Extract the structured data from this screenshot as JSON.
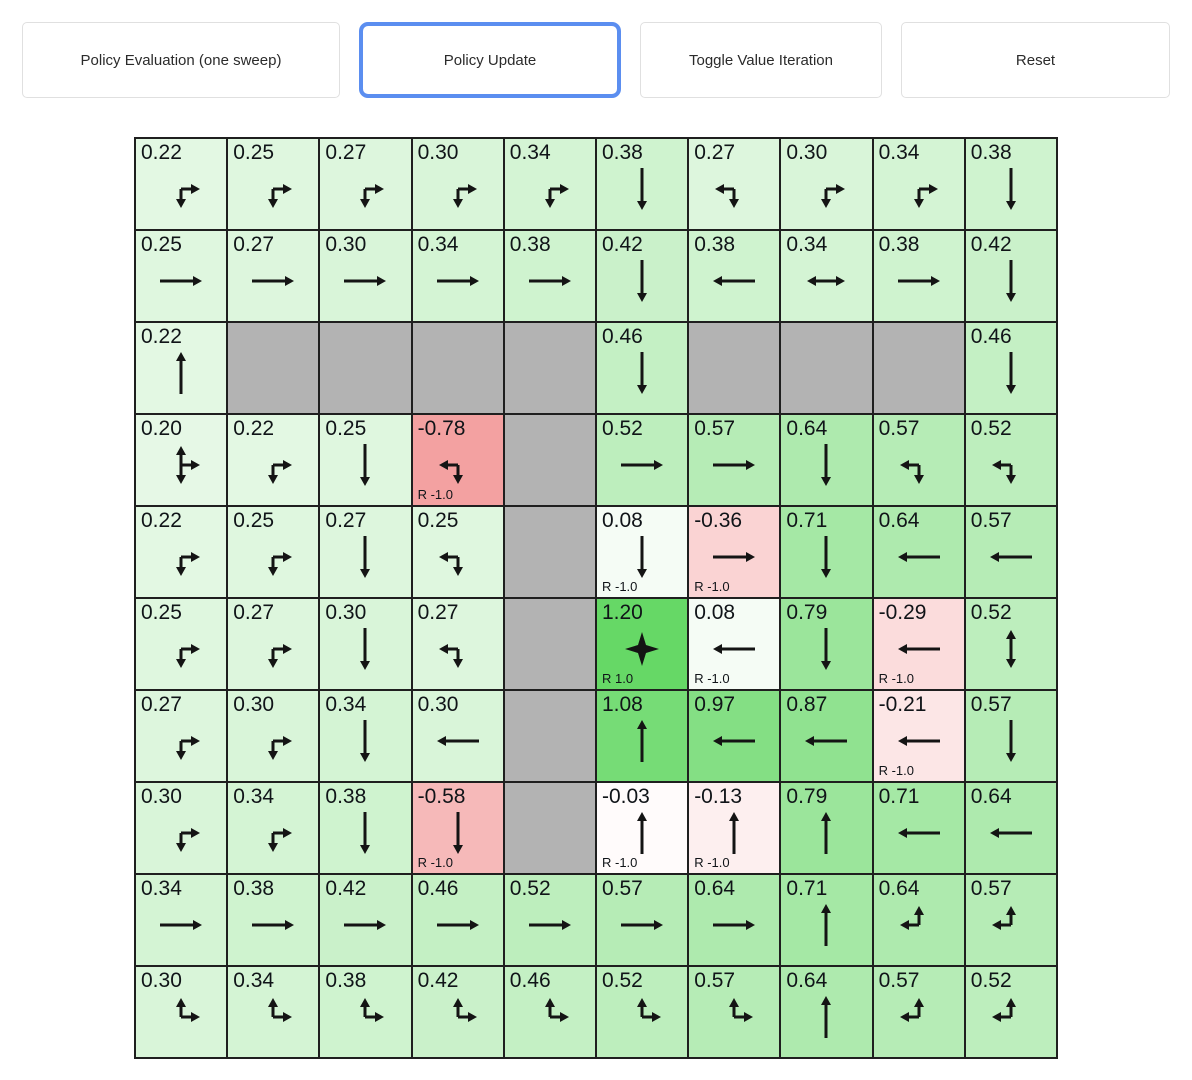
{
  "toolbar": {
    "buttons": [
      {
        "label": "Policy Evaluation (one sweep)",
        "active": false
      },
      {
        "label": "Policy Update",
        "active": true
      },
      {
        "label": "Toggle Value Iteration",
        "active": false
      },
      {
        "label": "Reset",
        "active": false
      }
    ],
    "active_border_color": "#5b8ef0"
  },
  "grid": {
    "rows": 10,
    "cols": 10,
    "colors": {
      "wall": "#b3b3b3",
      "positive_max": "#60d660",
      "negative_max": "#f08686",
      "base": "#ffffff",
      "border": "#1f1f1f",
      "arrow": "#141414",
      "value_max": 1.25,
      "value_min": -1.0
    },
    "cells": [
      [
        {
          "v": "0.22",
          "p": [
            "down",
            "right"
          ]
        },
        {
          "v": "0.25",
          "p": [
            "down",
            "right"
          ]
        },
        {
          "v": "0.27",
          "p": [
            "down",
            "right"
          ]
        },
        {
          "v": "0.30",
          "p": [
            "down",
            "right"
          ]
        },
        {
          "v": "0.34",
          "p": [
            "down",
            "right"
          ]
        },
        {
          "v": "0.38",
          "p": [
            "down"
          ]
        },
        {
          "v": "0.27",
          "p": [
            "left",
            "down"
          ]
        },
        {
          "v": "0.30",
          "p": [
            "down",
            "right"
          ]
        },
        {
          "v": "0.34",
          "p": [
            "down",
            "right"
          ]
        },
        {
          "v": "0.38",
          "p": [
            "down"
          ]
        }
      ],
      [
        {
          "v": "0.25",
          "p": [
            "right"
          ]
        },
        {
          "v": "0.27",
          "p": [
            "right"
          ]
        },
        {
          "v": "0.30",
          "p": [
            "right"
          ]
        },
        {
          "v": "0.34",
          "p": [
            "right"
          ]
        },
        {
          "v": "0.38",
          "p": [
            "right"
          ]
        },
        {
          "v": "0.42",
          "p": [
            "down"
          ]
        },
        {
          "v": "0.38",
          "p": [
            "left"
          ]
        },
        {
          "v": "0.34",
          "p": [
            "left",
            "right"
          ]
        },
        {
          "v": "0.38",
          "p": [
            "right"
          ]
        },
        {
          "v": "0.42",
          "p": [
            "down"
          ]
        }
      ],
      [
        {
          "v": "0.22",
          "p": [
            "up"
          ]
        },
        {
          "wall": true
        },
        {
          "wall": true
        },
        {
          "wall": true
        },
        {
          "wall": true
        },
        {
          "v": "0.46",
          "p": [
            "down"
          ]
        },
        {
          "wall": true
        },
        {
          "wall": true
        },
        {
          "wall": true
        },
        {
          "v": "0.46",
          "p": [
            "down"
          ]
        }
      ],
      [
        {
          "v": "0.20",
          "p": [
            "up",
            "down",
            "right"
          ]
        },
        {
          "v": "0.22",
          "p": [
            "down",
            "right"
          ]
        },
        {
          "v": "0.25",
          "p": [
            "down"
          ]
        },
        {
          "v": "-0.78",
          "p": [
            "left",
            "down"
          ],
          "r": "R -1.0"
        },
        {
          "wall": true
        },
        {
          "v": "0.52",
          "p": [
            "right"
          ]
        },
        {
          "v": "0.57",
          "p": [
            "right"
          ]
        },
        {
          "v": "0.64",
          "p": [
            "down"
          ]
        },
        {
          "v": "0.57",
          "p": [
            "left",
            "down"
          ]
        },
        {
          "v": "0.52",
          "p": [
            "left",
            "down"
          ]
        }
      ],
      [
        {
          "v": "0.22",
          "p": [
            "down",
            "right"
          ]
        },
        {
          "v": "0.25",
          "p": [
            "down",
            "right"
          ]
        },
        {
          "v": "0.27",
          "p": [
            "down"
          ]
        },
        {
          "v": "0.25",
          "p": [
            "left",
            "down"
          ]
        },
        {
          "wall": true
        },
        {
          "v": "0.08",
          "p": [
            "down"
          ],
          "r": "R -1.0"
        },
        {
          "v": "-0.36",
          "p": [
            "right"
          ],
          "r": "R -1.0"
        },
        {
          "v": "0.71",
          "p": [
            "down"
          ]
        },
        {
          "v": "0.64",
          "p": [
            "left"
          ]
        },
        {
          "v": "0.57",
          "p": [
            "left"
          ]
        }
      ],
      [
        {
          "v": "0.25",
          "p": [
            "down",
            "right"
          ]
        },
        {
          "v": "0.27",
          "p": [
            "down",
            "right"
          ]
        },
        {
          "v": "0.30",
          "p": [
            "down"
          ]
        },
        {
          "v": "0.27",
          "p": [
            "left",
            "down"
          ]
        },
        {
          "wall": true
        },
        {
          "v": "1.20",
          "terminal": true,
          "r": "R 1.0"
        },
        {
          "v": "0.08",
          "p": [
            "left"
          ],
          "r": "R -1.0"
        },
        {
          "v": "0.79",
          "p": [
            "down"
          ]
        },
        {
          "v": "-0.29",
          "p": [
            "left"
          ],
          "r": "R -1.0"
        },
        {
          "v": "0.52",
          "p": [
            "up",
            "down"
          ]
        }
      ],
      [
        {
          "v": "0.27",
          "p": [
            "down",
            "right"
          ]
        },
        {
          "v": "0.30",
          "p": [
            "down",
            "right"
          ]
        },
        {
          "v": "0.34",
          "p": [
            "down"
          ]
        },
        {
          "v": "0.30",
          "p": [
            "left"
          ]
        },
        {
          "wall": true
        },
        {
          "v": "1.08",
          "p": [
            "up"
          ]
        },
        {
          "v": "0.97",
          "p": [
            "left"
          ]
        },
        {
          "v": "0.87",
          "p": [
            "left"
          ]
        },
        {
          "v": "-0.21",
          "p": [
            "left"
          ],
          "r": "R -1.0"
        },
        {
          "v": "0.57",
          "p": [
            "down"
          ]
        }
      ],
      [
        {
          "v": "0.30",
          "p": [
            "down",
            "right"
          ]
        },
        {
          "v": "0.34",
          "p": [
            "down",
            "right"
          ]
        },
        {
          "v": "0.38",
          "p": [
            "down"
          ]
        },
        {
          "v": "-0.58",
          "p": [
            "down"
          ],
          "r": "R -1.0"
        },
        {
          "wall": true
        },
        {
          "v": "-0.03",
          "p": [
            "up"
          ],
          "r": "R -1.0"
        },
        {
          "v": "-0.13",
          "p": [
            "up"
          ],
          "r": "R -1.0"
        },
        {
          "v": "0.79",
          "p": [
            "up"
          ]
        },
        {
          "v": "0.71",
          "p": [
            "left"
          ]
        },
        {
          "v": "0.64",
          "p": [
            "left"
          ]
        }
      ],
      [
        {
          "v": "0.34",
          "p": [
            "right"
          ]
        },
        {
          "v": "0.38",
          "p": [
            "right"
          ]
        },
        {
          "v": "0.42",
          "p": [
            "right"
          ]
        },
        {
          "v": "0.46",
          "p": [
            "right"
          ]
        },
        {
          "v": "0.52",
          "p": [
            "right"
          ]
        },
        {
          "v": "0.57",
          "p": [
            "right"
          ]
        },
        {
          "v": "0.64",
          "p": [
            "right"
          ]
        },
        {
          "v": "0.71",
          "p": [
            "up"
          ]
        },
        {
          "v": "0.64",
          "p": [
            "up",
            "left"
          ]
        },
        {
          "v": "0.57",
          "p": [
            "up",
            "left"
          ]
        }
      ],
      [
        {
          "v": "0.30",
          "p": [
            "up",
            "right"
          ]
        },
        {
          "v": "0.34",
          "p": [
            "up",
            "right"
          ]
        },
        {
          "v": "0.38",
          "p": [
            "up",
            "right"
          ]
        },
        {
          "v": "0.42",
          "p": [
            "up",
            "right"
          ]
        },
        {
          "v": "0.46",
          "p": [
            "up",
            "right"
          ]
        },
        {
          "v": "0.52",
          "p": [
            "up",
            "right"
          ]
        },
        {
          "v": "0.57",
          "p": [
            "up",
            "right"
          ]
        },
        {
          "v": "0.64",
          "p": [
            "up"
          ]
        },
        {
          "v": "0.57",
          "p": [
            "up",
            "left"
          ]
        },
        {
          "v": "0.52",
          "p": [
            "up",
            "left"
          ]
        }
      ]
    ]
  }
}
